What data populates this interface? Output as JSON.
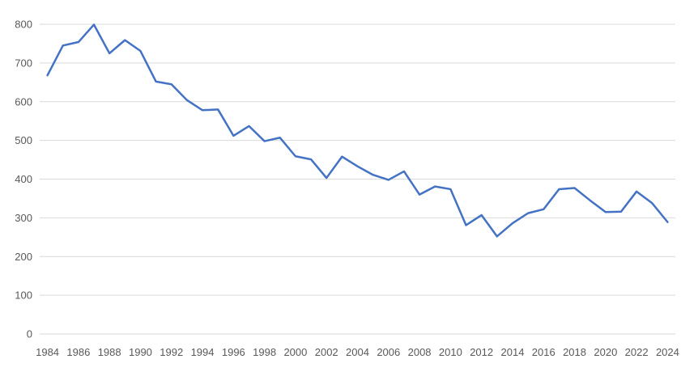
{
  "chart_data": {
    "type": "line",
    "title": "",
    "xlabel": "",
    "ylabel": "",
    "legend": "none",
    "grid": "horizontal",
    "x": [
      1984,
      1985,
      1986,
      1987,
      1988,
      1989,
      1990,
      1991,
      1992,
      1993,
      1994,
      1995,
      1996,
      1997,
      1998,
      1999,
      2000,
      2001,
      2002,
      2003,
      2004,
      2005,
      2006,
      2007,
      2008,
      2009,
      2010,
      2011,
      2012,
      2013,
      2014,
      2015,
      2016,
      2017,
      2018,
      2019,
      2020,
      2021,
      2022,
      2023,
      2024
    ],
    "values": [
      668,
      745,
      754,
      799,
      725,
      759,
      731,
      652,
      645,
      604,
      578,
      580,
      512,
      537,
      498,
      507,
      459,
      451,
      403,
      458,
      433,
      411,
      398,
      420,
      360,
      381,
      374,
      281,
      307,
      252,
      286,
      312,
      322,
      374,
      377,
      345,
      315,
      316,
      368,
      338,
      289
    ],
    "x_tick_labels": [
      "1984",
      "1986",
      "1988",
      "1990",
      "1992",
      "1994",
      "1996",
      "1998",
      "2000",
      "2002",
      "2004",
      "2006",
      "2008",
      "2010",
      "2012",
      "2014",
      "2016",
      "2018",
      "2020",
      "2022",
      "2024"
    ],
    "x_tick_step_years": 2,
    "y_tick_labels": [
      "0",
      "100",
      "200",
      "300",
      "400",
      "500",
      "600",
      "700",
      "800"
    ],
    "y_ticks": [
      0,
      100,
      200,
      300,
      400,
      500,
      600,
      700,
      800
    ],
    "ylim": [
      0,
      800
    ],
    "colors": {
      "line": "#4472C4",
      "gridline": "#D9D9D9",
      "tick_label": "#595959",
      "background": "#FFFFFF"
    }
  }
}
